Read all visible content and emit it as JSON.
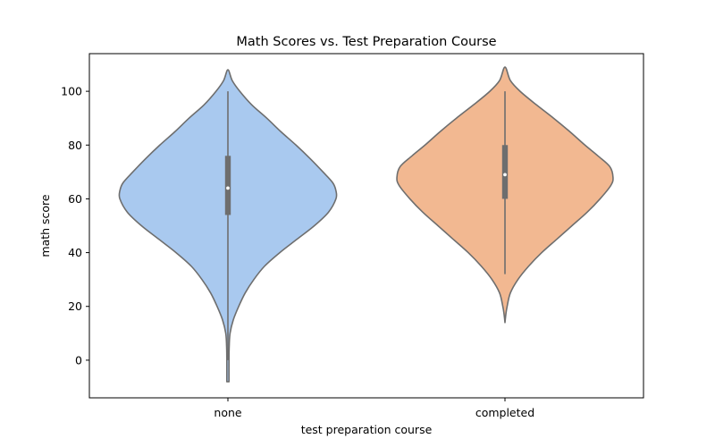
{
  "chart_data": {
    "type": "violin",
    "title": "Math Scores vs. Test Preparation Course",
    "xlabel": "test preparation course",
    "ylabel": "math score",
    "categories": [
      "none",
      "completed"
    ],
    "ylim": [
      -14,
      114
    ],
    "yticks": [
      0,
      20,
      40,
      60,
      80,
      100
    ],
    "grid": false,
    "legend": "none",
    "series": [
      {
        "category": "none",
        "color": "#a9c9ef",
        "edge_color": "#6e6e6e",
        "min": 0,
        "q1": 54,
        "median": 64,
        "q3": 76,
        "max": 100,
        "kde_extent": [
          -8,
          108
        ],
        "density": [
          [
            -8,
            0.01
          ],
          [
            0,
            0.01
          ],
          [
            5,
            0.012
          ],
          [
            10,
            0.02
          ],
          [
            15,
            0.05
          ],
          [
            20,
            0.1
          ],
          [
            25,
            0.16
          ],
          [
            30,
            0.24
          ],
          [
            35,
            0.34
          ],
          [
            40,
            0.48
          ],
          [
            45,
            0.64
          ],
          [
            50,
            0.8
          ],
          [
            55,
            0.93
          ],
          [
            60,
            1.0
          ],
          [
            63,
            1.0
          ],
          [
            66,
            0.97
          ],
          [
            70,
            0.88
          ],
          [
            75,
            0.76
          ],
          [
            80,
            0.63
          ],
          [
            85,
            0.49
          ],
          [
            90,
            0.36
          ],
          [
            95,
            0.22
          ],
          [
            100,
            0.11
          ],
          [
            104,
            0.04
          ],
          [
            108,
            0.0
          ]
        ]
      },
      {
        "category": "completed",
        "color": "#f2b891",
        "edge_color": "#6e6e6e",
        "min": 32,
        "q1": 60,
        "median": 69,
        "q3": 80,
        "max": 100,
        "kde_extent": [
          14,
          109
        ],
        "density": [
          [
            14,
            0.0
          ],
          [
            17,
            0.008
          ],
          [
            20,
            0.02
          ],
          [
            25,
            0.05
          ],
          [
            30,
            0.12
          ],
          [
            35,
            0.22
          ],
          [
            40,
            0.34
          ],
          [
            45,
            0.48
          ],
          [
            50,
            0.62
          ],
          [
            55,
            0.76
          ],
          [
            60,
            0.88
          ],
          [
            65,
            0.98
          ],
          [
            68,
            1.0
          ],
          [
            72,
            0.97
          ],
          [
            76,
            0.86
          ],
          [
            80,
            0.74
          ],
          [
            85,
            0.6
          ],
          [
            90,
            0.45
          ],
          [
            95,
            0.29
          ],
          [
            100,
            0.14
          ],
          [
            104,
            0.05
          ],
          [
            109,
            0.0
          ]
        ]
      }
    ]
  }
}
